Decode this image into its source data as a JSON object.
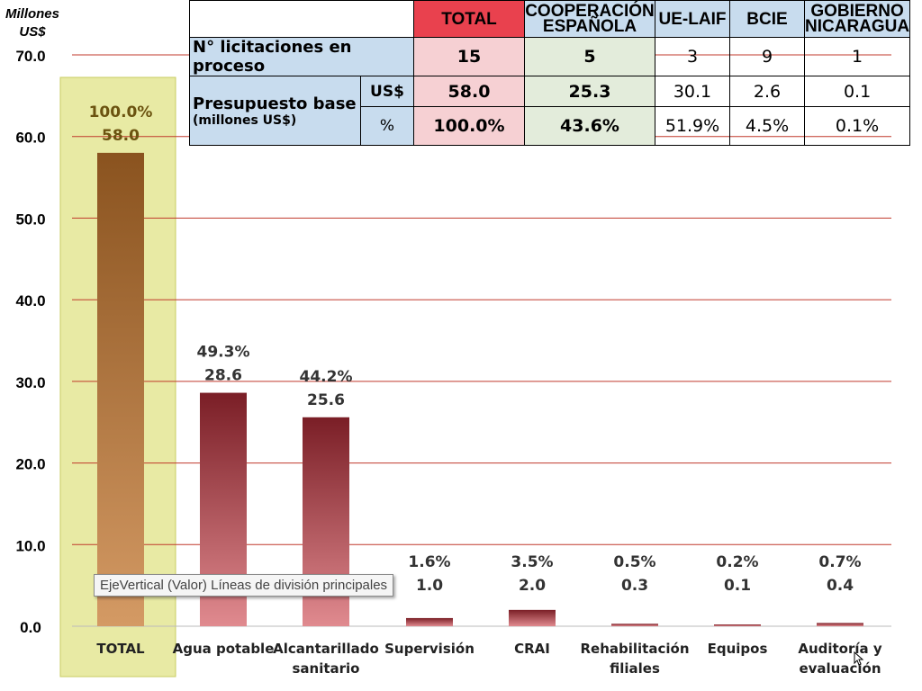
{
  "y_unit_label": "Millones US$",
  "table": {
    "headers": [
      "TOTAL",
      "COOPERACIÓN ESPAÑOLA",
      "UE-LAIF",
      "BCIE",
      "GOBIERNO NICARAGUA"
    ],
    "row_licitaciones": {
      "label": "N° licitaciones en proceso",
      "values": [
        "15",
        "5",
        "3",
        "9",
        "1"
      ]
    },
    "presupuesto_label": "Presupuesto base",
    "presupuesto_sublabel": "(millones US$)",
    "row_usd": {
      "label": "US$",
      "values": [
        "58.0",
        "25.3",
        "30.1",
        "2.6",
        "0.1"
      ]
    },
    "row_pct": {
      "label": "%",
      "values": [
        "100.0%",
        "43.6%",
        "51.9%",
        "4.5%",
        "0.1%"
      ]
    }
  },
  "tooltip": "EjeVertical (Valor)  Líneas de división principales",
  "colors": {
    "total_bar": "#a4642c",
    "bar": "#a8323a",
    "gridline": "#c0392b",
    "total_highlight": "#e8eaa4"
  },
  "chart_data": {
    "type": "bar",
    "categories": [
      "TOTAL",
      "Agua potable",
      "Alcantarillado sanitario",
      "Supervisión",
      "CRAI",
      "Rehabilitación filiales",
      "Equipos",
      "Auditoría y evaluación"
    ],
    "values": [
      58.0,
      28.6,
      25.6,
      1.0,
      2.0,
      0.3,
      0.1,
      0.4
    ],
    "value_labels": [
      "58.0",
      "28.6",
      "25.6",
      "1.0",
      "2.0",
      "0.3",
      "0.1",
      "0.4"
    ],
    "percent_labels": [
      "100.0%",
      "49.3%",
      "44.2%",
      "1.6%",
      "3.5%",
      "0.5%",
      "0.2%",
      "0.7%"
    ],
    "ylabel": "Millones US$",
    "ylim": [
      0,
      70
    ],
    "yticks": [
      "0.0",
      "10.0",
      "20.0",
      "30.0",
      "40.0",
      "50.0",
      "60.0",
      "70.0"
    ],
    "grid": true,
    "legend": "none"
  }
}
